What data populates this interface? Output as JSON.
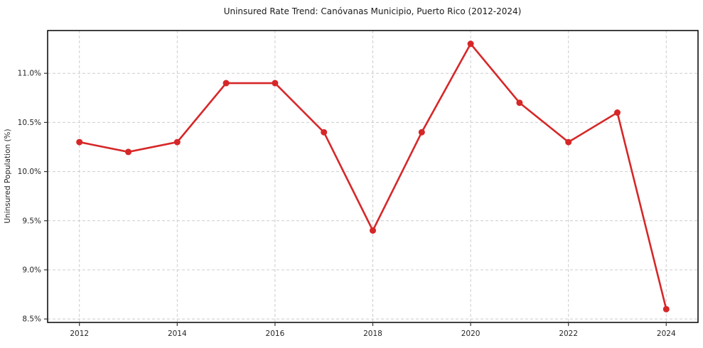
{
  "chart_data": {
    "type": "line",
    "title": "Uninsured Rate Trend: Canóvanas Municipio, Puerto Rico (2012-2024)",
    "xlabel": "",
    "ylabel": "Uninsured Population (%)",
    "x": [
      2012,
      2013,
      2014,
      2015,
      2016,
      2017,
      2018,
      2019,
      2020,
      2021,
      2022,
      2023,
      2024
    ],
    "series": [
      {
        "name": "Uninsured Rate",
        "values": [
          10.3,
          10.2,
          10.3,
          10.9,
          10.9,
          10.4,
          9.4,
          10.4,
          11.3,
          10.7,
          10.3,
          10.6,
          8.6
        ]
      }
    ],
    "xlim": [
      2011.35,
      2024.65
    ],
    "ylim": [
      8.465,
      11.435
    ],
    "xticks": [
      2012,
      2014,
      2016,
      2018,
      2020,
      2022,
      2024
    ],
    "xtick_labels": [
      "2012",
      "2014",
      "2016",
      "2018",
      "2020",
      "2022",
      "2024"
    ],
    "yticks": [
      8.5,
      9.0,
      9.5,
      10.0,
      10.5,
      11.0
    ],
    "ytick_labels": [
      "8.5%",
      "9.0%",
      "9.5%",
      "10.0%",
      "10.5%",
      "11.0%"
    ],
    "grid": true,
    "legend_position": "none",
    "colors": {
      "line": "#d62728",
      "marker": "#d62728",
      "grid": "#cccccc",
      "spine": "#000000",
      "tick": "#333333",
      "text": "#262626",
      "background": "#ffffff"
    },
    "marker_style": "circle",
    "line_width": 2.6,
    "marker_radius": 4.5
  }
}
